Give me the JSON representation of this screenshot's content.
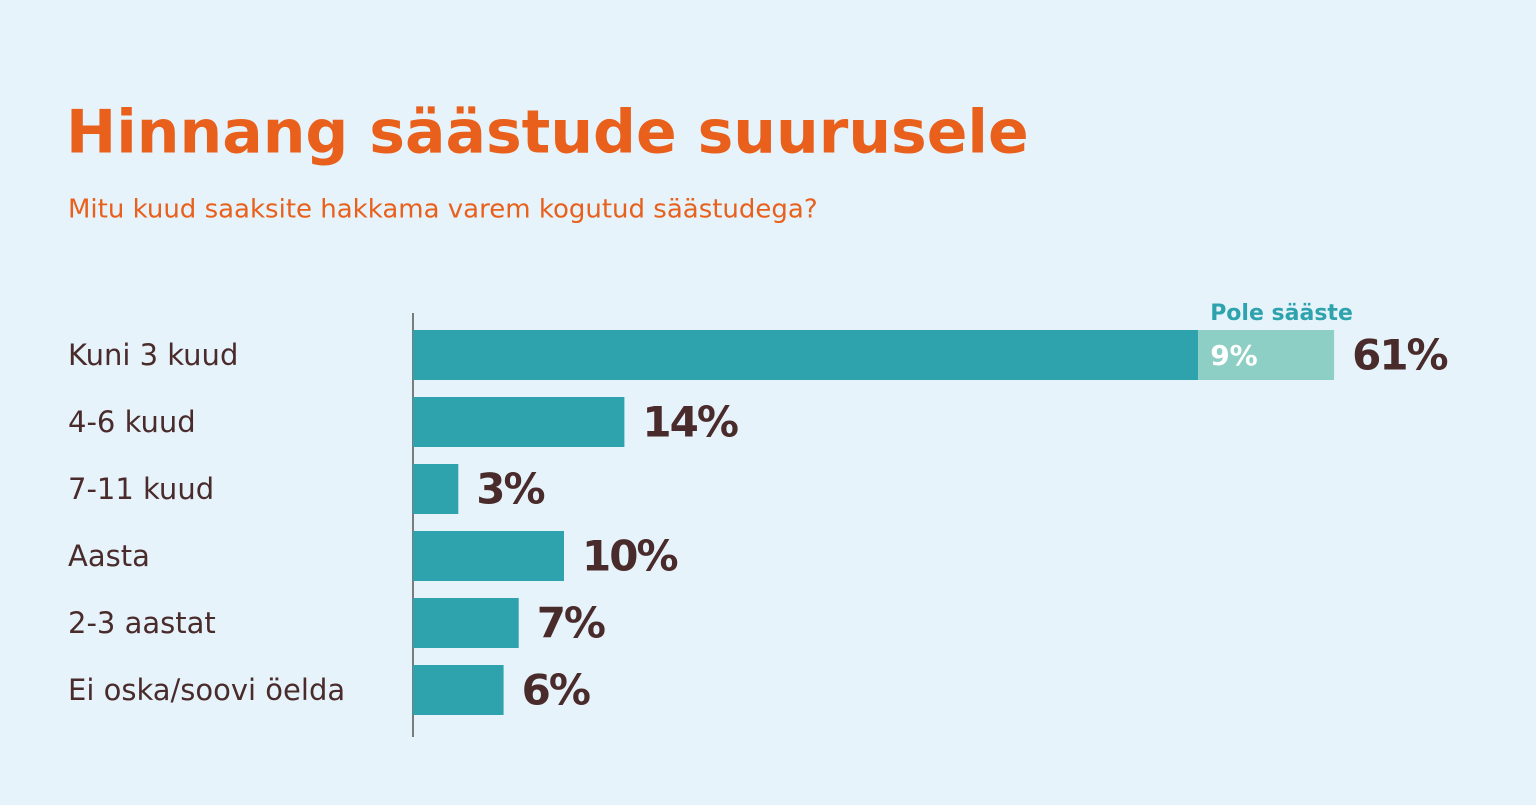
{
  "chart_data": {
    "type": "stacked-bar-horizontal",
    "title": "Hinnang säästude suurusele",
    "subtitle": "Mitu kuud saaksite hakkama varem kogutud säästudega?",
    "categories": [
      "Kuni 3 kuud",
      "4-6 kuud",
      "7-11 kuud",
      "Aasta",
      "2-3 aastat",
      "Ei oska/soovi öelda"
    ],
    "series": [
      {
        "color": "#2ea3ae",
        "values": [
          52,
          14,
          3,
          10,
          7,
          6
        ]
      },
      {
        "name": "Pole sääste",
        "color": "#8dcfc4",
        "values": [
          9,
          null,
          null,
          null,
          null,
          null
        ],
        "value_labels": [
          "9%",
          null,
          null,
          null,
          null,
          null
        ]
      }
    ],
    "totals": [
      61,
      14,
      3,
      10,
      7,
      6
    ],
    "total_labels": [
      "61%",
      "14%",
      "3%",
      "10%",
      "7%",
      "6%"
    ]
  }
}
